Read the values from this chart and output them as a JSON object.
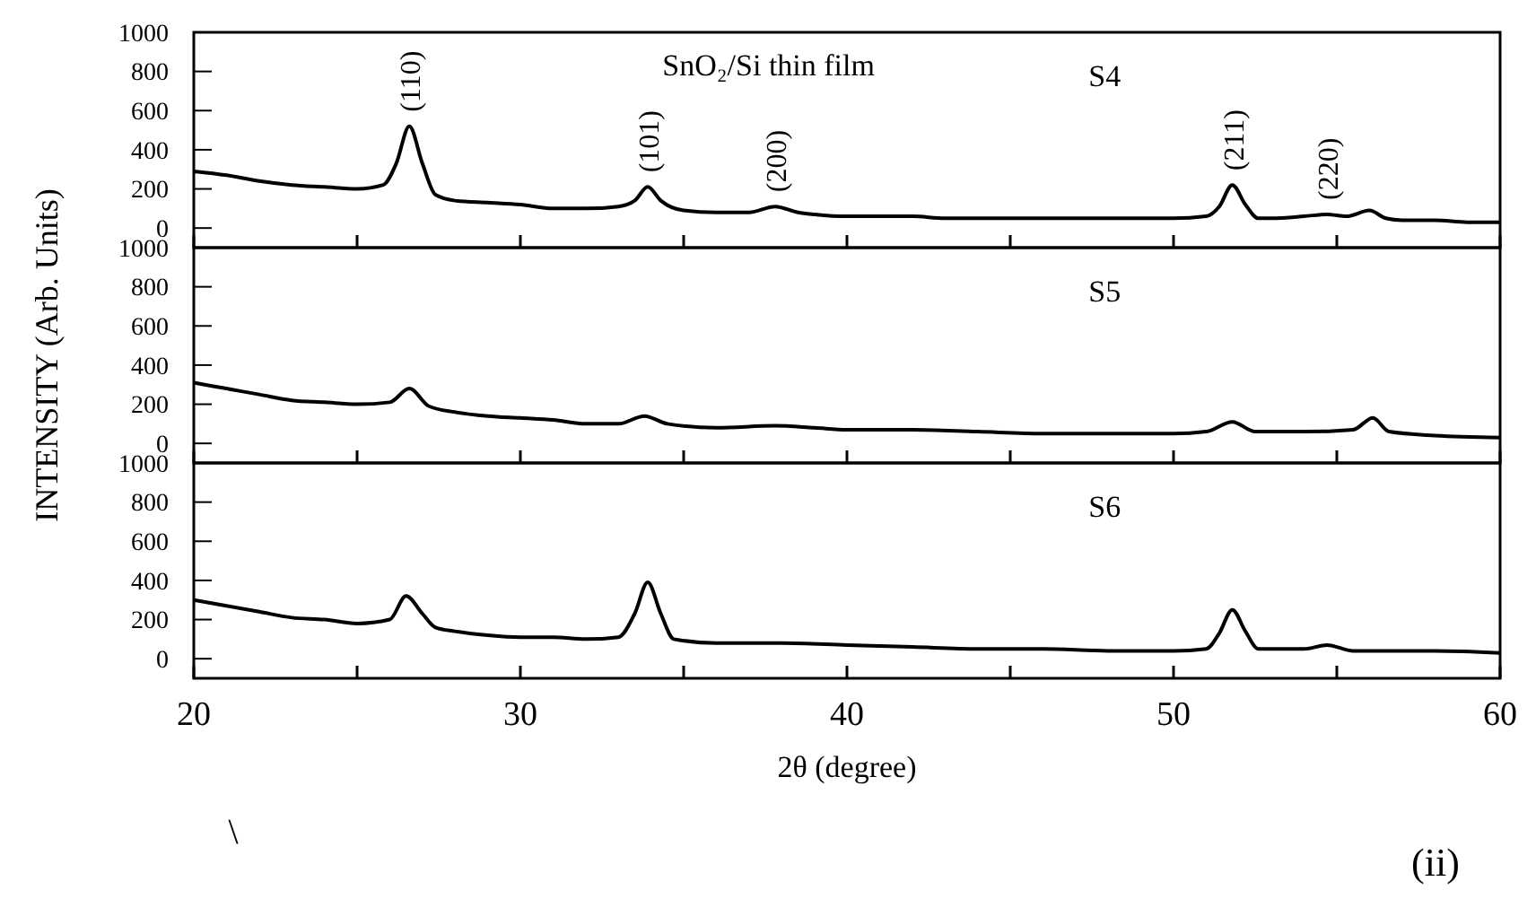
{
  "chart_data": [
    {
      "type": "line",
      "title": "SnO₂/Si thin film",
      "xlim": [
        20,
        60
      ],
      "xticks": [
        {
          "value": 20,
          "label": null
        },
        {
          "value": 25,
          "label": null
        },
        {
          "value": 30,
          "label": null
        },
        {
          "value": 35,
          "label": null
        },
        {
          "value": 40,
          "label": null
        },
        {
          "value": 45,
          "label": null
        },
        {
          "value": 50,
          "label": null
        },
        {
          "value": 55,
          "label": null
        },
        {
          "value": 60,
          "label": null
        }
      ],
      "ylim": [
        -100,
        1000
      ],
      "yticks": [
        0,
        200,
        400,
        600,
        800,
        1000
      ],
      "tick_labels": "y",
      "x": [
        20,
        21,
        22,
        23,
        24,
        25,
        25.8,
        26.2,
        26.6,
        27.0,
        27.4,
        28,
        29,
        30,
        31,
        32,
        33,
        33.5,
        33.9,
        34.3,
        35,
        36,
        37,
        37.8,
        38.5,
        39,
        40,
        41,
        42,
        43,
        44,
        45,
        46,
        47,
        48,
        49,
        50,
        51,
        51.4,
        51.8,
        52.2,
        52.6,
        53,
        54,
        54.7,
        55.3,
        56,
        56.5,
        57,
        58,
        59,
        60
      ],
      "series": [
        {
          "name": "S4",
          "color": "#000000",
          "values": [
            290,
            270,
            240,
            220,
            210,
            200,
            220,
            330,
            520,
            330,
            170,
            140,
            130,
            120,
            100,
            100,
            110,
            140,
            210,
            140,
            90,
            80,
            80,
            110,
            80,
            70,
            60,
            60,
            60,
            50,
            50,
            50,
            50,
            50,
            50,
            50,
            50,
            60,
            110,
            220,
            120,
            50,
            50,
            60,
            70,
            60,
            90,
            50,
            40,
            40,
            30,
            30
          ]
        }
      ],
      "annotations": [
        {
          "text": "(110)",
          "x": 26.6,
          "y": 520
        },
        {
          "text": "(101)",
          "x": 33.9,
          "y": 210
        },
        {
          "text": "(200)",
          "x": 37.8,
          "y": 110
        },
        {
          "text": "(211)",
          "x": 51.8,
          "y": 220
        },
        {
          "text": "(220)",
          "x": 54.7,
          "y": 70
        }
      ]
    },
    {
      "type": "line",
      "ylabel": "INTENSITY (Arb. Units)",
      "xlim": [
        20,
        60
      ],
      "xticks": [
        {
          "value": 20,
          "label": null
        },
        {
          "value": 25,
          "label": null
        },
        {
          "value": 30,
          "label": null
        },
        {
          "value": 35,
          "label": null
        },
        {
          "value": 40,
          "label": null
        },
        {
          "value": 45,
          "label": null
        },
        {
          "value": 50,
          "label": null
        },
        {
          "value": 55,
          "label": null
        },
        {
          "value": 60,
          "label": null
        }
      ],
      "ylim": [
        -100,
        1000
      ],
      "yticks": [
        0,
        200,
        400,
        600,
        800,
        1000
      ],
      "tick_labels": "y",
      "x": [
        20,
        21,
        22,
        23,
        24,
        25,
        26,
        26.6,
        27.2,
        28,
        29,
        30,
        31,
        32,
        33,
        33.8,
        34.5,
        36,
        37.8,
        39,
        40,
        42,
        44,
        46,
        48,
        50,
        51,
        51.8,
        52.5,
        54,
        55.5,
        56.1,
        56.6,
        58,
        60
      ],
      "series": [
        {
          "name": "S5",
          "color": "#000000",
          "values": [
            310,
            280,
            250,
            220,
            210,
            200,
            210,
            280,
            190,
            160,
            140,
            130,
            120,
            100,
            100,
            140,
            100,
            80,
            90,
            80,
            70,
            70,
            60,
            50,
            50,
            50,
            60,
            110,
            60,
            60,
            70,
            130,
            60,
            40,
            30
          ]
        }
      ]
    },
    {
      "type": "line",
      "xlabel": "2θ (degree)",
      "xlim": [
        20,
        60
      ],
      "xticks": [
        20,
        {
          "value": 25,
          "label": null
        },
        30,
        {
          "value": 35,
          "label": null
        },
        40,
        {
          "value": 45,
          "label": null
        },
        50,
        {
          "value": 55,
          "label": null
        },
        60
      ],
      "ylim": [
        -100,
        1000
      ],
      "yticks": [
        0,
        200,
        400,
        600,
        800,
        1000
      ],
      "x": [
        20,
        21,
        22,
        23,
        24,
        25,
        26,
        26.5,
        27,
        27.4,
        28,
        29,
        30,
        31,
        32,
        33,
        33.5,
        33.9,
        34.3,
        34.7,
        36,
        38,
        40,
        42,
        44,
        46,
        48,
        50,
        51,
        51.4,
        51.8,
        52.2,
        52.6,
        54,
        54.7,
        55.5,
        57,
        58,
        60
      ],
      "series": [
        {
          "name": "S6",
          "color": "#000000",
          "values": [
            300,
            270,
            240,
            210,
            200,
            180,
            200,
            320,
            230,
            160,
            140,
            120,
            110,
            110,
            100,
            110,
            230,
            390,
            230,
            100,
            80,
            80,
            70,
            60,
            50,
            50,
            40,
            40,
            50,
            130,
            250,
            140,
            50,
            50,
            70,
            40,
            40,
            40,
            30
          ]
        }
      ],
      "annotations": [
        "\\",
        "(ii)"
      ]
    }
  ]
}
